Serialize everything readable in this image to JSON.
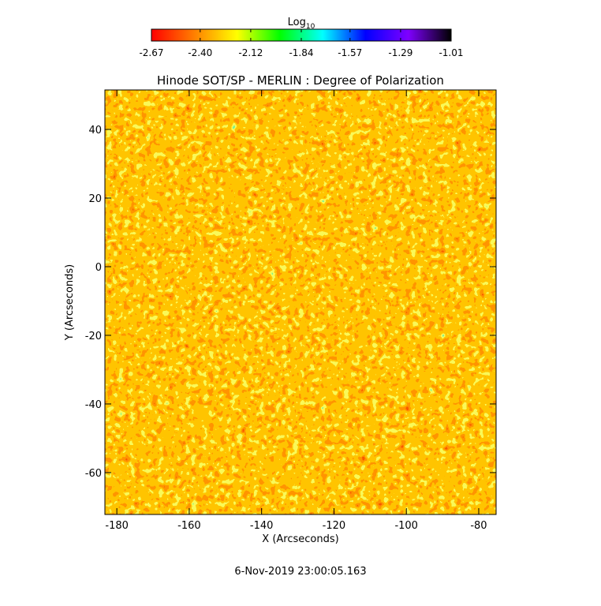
{
  "chart_data": {
    "type": "heatmap",
    "title": "Hinode SOT/SP - MERLIN : Degree of Polarization",
    "xlabel": "X (Arcseconds)",
    "ylabel": "Y (Arcseconds)",
    "xlim": [
      -183.3,
      -75.2
    ],
    "ylim": [
      -72.2,
      51.5
    ],
    "xticks": [
      -180,
      -160,
      -140,
      -120,
      -100,
      -80
    ],
    "yticks": [
      -60,
      -40,
      -20,
      0,
      20,
      40
    ],
    "colorbar": {
      "label": "Log",
      "label_sub": "10",
      "clim": [
        -2.67,
        -1.01
      ],
      "ticks": [
        -2.67,
        {
          "value": -2.4,
          "label": "-2.40"
        },
        -2.12,
        -1.84,
        -1.57,
        -1.29,
        -1.01
      ],
      "colors": [
        "#ff0000",
        "#ff7f00",
        "#ffff00",
        "#00ff00",
        "#00ffff",
        "#0000ff",
        "#7f00ff",
        "#000000"
      ]
    },
    "footer": "6-Nov-2019 23:00:05.163"
  }
}
